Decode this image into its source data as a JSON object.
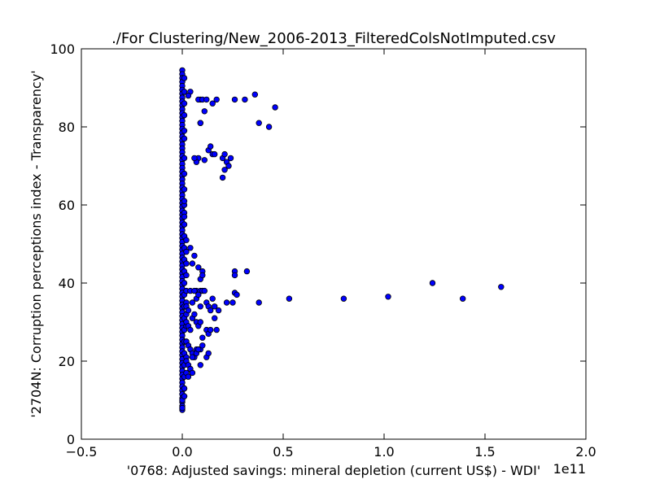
{
  "chart_data": {
    "type": "scatter",
    "title": "./For Clustering/New_2006-2013_FilteredColsNotImputed.csv",
    "xlabel": "'0768: Adjusted savings: mineral depletion  (current US$) - WDI'",
    "ylabel": "'2704N: Corruption perceptions index - Transparency'",
    "x_offset_label": "1e11",
    "x_scale": 100000000000,
    "xlim": [
      -0.5,
      2.0
    ],
    "ylim": [
      0,
      100
    ],
    "xticks": [
      -0.5,
      0.0,
      0.5,
      1.0,
      1.5,
      2.0
    ],
    "xtick_labels": [
      "−0.5",
      "0.0",
      "0.5",
      "1.0",
      "1.5",
      "2.0"
    ],
    "yticks": [
      0,
      20,
      40,
      60,
      80,
      100
    ],
    "ytick_labels": [
      "0",
      "20",
      "40",
      "60",
      "80",
      "100"
    ],
    "grid": false,
    "legend": "none",
    "marker_color": "#0000ff",
    "marker_edge_color": "#000000",
    "series": [
      {
        "x": [
          0.0,
          0.0,
          0.0,
          0.0,
          0.0,
          0.0,
          0.0,
          0.0,
          0.0,
          0.0,
          0.0,
          0.0,
          0.0,
          0.0,
          0.0,
          0.0,
          0.0,
          0.0,
          0.0,
          0.0,
          0.0,
          0.0,
          0.0,
          0.0,
          0.0,
          0.0,
          0.0,
          0.0,
          0.0,
          0.0,
          0.0,
          0.0,
          0.0,
          0.0,
          0.0,
          0.0,
          0.0,
          0.0,
          0.0,
          0.0,
          0.0,
          0.0,
          0.0,
          0.0,
          0.0,
          0.0,
          0.0,
          0.0,
          0.0,
          0.0,
          0.0,
          0.0,
          0.0,
          0.0,
          0.0,
          0.0,
          0.0,
          0.0,
          0.0,
          0.0,
          0.0,
          0.0,
          0.0,
          0.0,
          0.0,
          0.0,
          0.0,
          0.0,
          0.0,
          0.0,
          0.0,
          0.0,
          0.0,
          0.0,
          0.0,
          0.0,
          0.0,
          0.0,
          0.0,
          0.0,
          0.0,
          0.0,
          0.0,
          0.0,
          0.0,
          0.0,
          0.0,
          0.0,
          0.0,
          0.01,
          0.01,
          0.01,
          0.01,
          0.01,
          0.01,
          0.01,
          0.01,
          0.01,
          0.01,
          0.01,
          0.01,
          0.01,
          0.01,
          0.01,
          0.01,
          0.01,
          0.01,
          0.01,
          0.01,
          0.01,
          0.01,
          0.01,
          0.01,
          0.01,
          0.01,
          0.01,
          0.01,
          0.01,
          0.01,
          0.02,
          0.02,
          0.02,
          0.02,
          0.02,
          0.02,
          0.02,
          0.02,
          0.02,
          0.02,
          0.04,
          0.03,
          0.09,
          0.08,
          0.1,
          0.12,
          0.15,
          0.17,
          0.26,
          0.31,
          0.36,
          0.38,
          0.43,
          0.46,
          0.11,
          0.09,
          0.09,
          0.08,
          0.07,
          0.06,
          0.11,
          0.13,
          0.14,
          0.15,
          0.16,
          0.2,
          0.21,
          0.22,
          0.24,
          0.23,
          0.21,
          0.2,
          0.04,
          0.05,
          0.06,
          0.07,
          0.08,
          0.09,
          0.1,
          0.1,
          0.09,
          0.26,
          0.26,
          0.32,
          0.26,
          0.27,
          0.02,
          0.03,
          0.04,
          0.05,
          0.06,
          0.07,
          0.08,
          0.09,
          0.1,
          0.11,
          0.12,
          0.13,
          0.14,
          0.15,
          0.16,
          0.18,
          0.22,
          0.25,
          0.38,
          0.53,
          0.8,
          1.02,
          1.24,
          1.39,
          1.58,
          0.02,
          0.03,
          0.04,
          0.05,
          0.06,
          0.07,
          0.08,
          0.09,
          0.1,
          0.12,
          0.13,
          0.14,
          0.16,
          0.17,
          0.02,
          0.03,
          0.04,
          0.05,
          0.06,
          0.07,
          0.09,
          0.1,
          0.12,
          0.13,
          0.02,
          0.03,
          0.04,
          0.05,
          0.07,
          0.08,
          0.09,
          0.02,
          0.03,
          0.04,
          0.05,
          0.0,
          0.01,
          0.0,
          0.01
        ],
        "y": [
          94.5,
          93.5,
          92.5,
          91.5,
          90.5,
          89.5,
          88.5,
          87.5,
          86.5,
          85.5,
          84.5,
          83.5,
          82.5,
          81.5,
          80.5,
          79.5,
          78.5,
          77.5,
          76.5,
          75.5,
          74.5,
          73.5,
          72.5,
          71.5,
          70.5,
          69.5,
          68.5,
          67.5,
          66.5,
          65.5,
          64.5,
          63.5,
          62.5,
          61.5,
          60.5,
          59.5,
          58.5,
          57.5,
          56.5,
          55.5,
          54.5,
          53.5,
          52.5,
          51.5,
          50.5,
          49.5,
          48.5,
          47.5,
          46.5,
          45.5,
          44.5,
          43.5,
          42.5,
          41.5,
          40.5,
          39.5,
          38.5,
          37.5,
          36.5,
          35.5,
          34.5,
          33.5,
          32.5,
          31.5,
          30.5,
          29.5,
          28.5,
          27.5,
          26.5,
          25.5,
          24.5,
          23.5,
          22.5,
          21.5,
          20.5,
          19.5,
          18.5,
          17.5,
          16.5,
          15.5,
          14.5,
          13.5,
          12.5,
          11.5,
          10.5,
          9.5,
          8.5,
          8.0,
          7.5,
          92.5,
          89.0,
          86.0,
          83.0,
          79.0,
          77.0,
          72.0,
          68.0,
          64.0,
          60.0,
          58.0,
          55.0,
          52.0,
          49.0,
          46.0,
          43.0,
          40.0,
          37.0,
          34.0,
          31.0,
          28.0,
          25.0,
          22.0,
          19.0,
          16.0,
          13.0,
          11.0,
          52.0,
          57.0,
          61.0,
          51.0,
          48.0,
          45.0,
          42.0,
          38.0,
          35.0,
          32.0,
          29.0,
          25.0,
          21.0,
          89.0,
          88.0,
          87.0,
          87.0,
          87.0,
          87.0,
          86.0,
          87.0,
          87.0,
          87.0,
          88.3,
          81.0,
          80.0,
          85.0,
          84.0,
          81.0,
          81.0,
          72.0,
          71.0,
          72.0,
          71.5,
          74.0,
          75.0,
          73.0,
          73.0,
          72.0,
          73.0,
          71.0,
          72.0,
          70.0,
          69.0,
          67.0,
          49.0,
          45.0,
          47.0,
          38.0,
          44.0,
          41.0,
          43.0,
          42.0,
          38.0,
          43.0,
          42.0,
          43.0,
          37.5,
          37.0,
          34.0,
          33.0,
          38.0,
          35.0,
          38.0,
          36.0,
          37.0,
          34.0,
          38.0,
          38.0,
          35.0,
          34.0,
          33.0,
          36.0,
          34.0,
          33.0,
          35.0,
          35.0,
          35.0,
          36.0,
          36.0,
          36.5,
          40.0,
          36.0,
          39.0,
          30.0,
          29.0,
          28.0,
          31.0,
          32.0,
          30.0,
          29.0,
          30.0,
          26.0,
          28.0,
          27.0,
          28.0,
          31.0,
          28.0,
          25.0,
          24.0,
          23.0,
          22.0,
          21.0,
          23.0,
          23.0,
          24.0,
          21.0,
          22.0,
          20.0,
          19.0,
          18.0,
          21.0,
          22.0,
          23.0,
          19.0,
          17.0,
          16.0,
          18.0,
          17.0,
          10.0,
          11.0,
          8.0,
          13.0
        ]
      }
    ]
  }
}
